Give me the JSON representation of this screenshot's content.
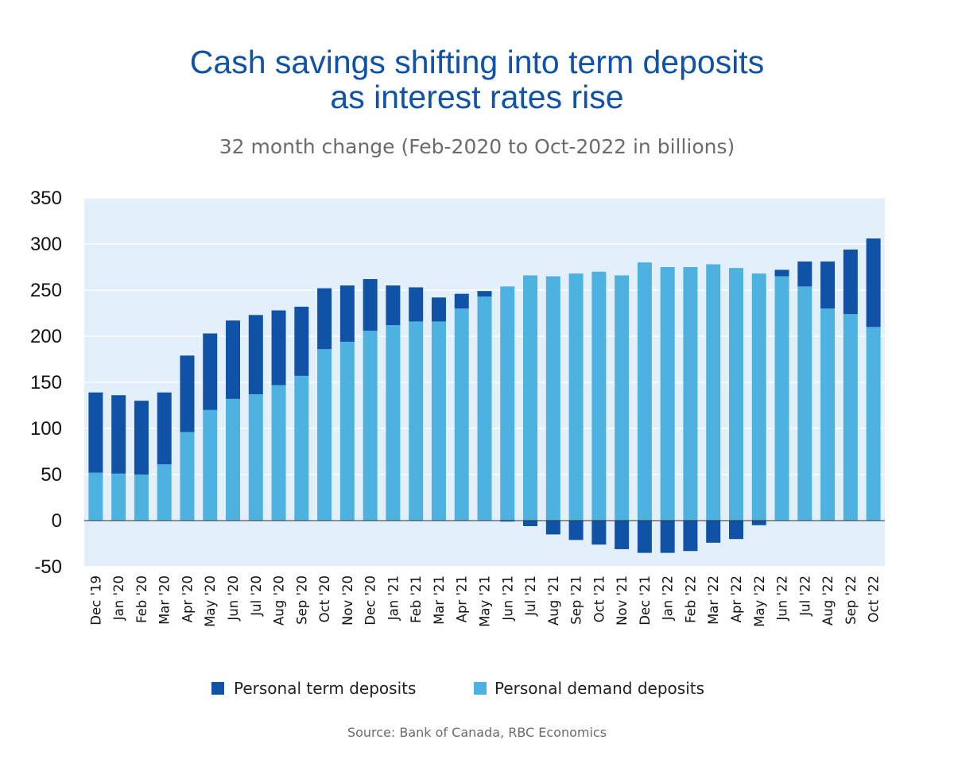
{
  "title_line1": "Cash savings shifting into term deposits",
  "title_line2": "as interest rates rise",
  "subtitle": "32 month change (Feb-2020 to Oct-2022 in billions)",
  "source": "Source: Bank of Canada, RBC Economics",
  "colors": {
    "term": "#0f52a6",
    "demand": "#4db2e0",
    "plot_bg": "#e3f0fb"
  },
  "chart_data": {
    "type": "bar",
    "stacked": true,
    "categories": [
      "Dec '19",
      "Jan '20",
      "Feb '20",
      "Mar '20",
      "Apr '20",
      "May '20",
      "Jun '20",
      "Jul '20",
      "Aug '20",
      "Sep '20",
      "Oct '20",
      "Nov '20",
      "Dec '20",
      "Jan '21",
      "Feb '21",
      "Mar '21",
      "Apr '21",
      "May '21",
      "Jun '21",
      "Jul '21",
      "Aug '21",
      "Sep '21",
      "Oct '21",
      "Nov '21",
      "Dec '21",
      "Jan '22",
      "Feb '22",
      "Mar '22",
      "Apr '22",
      "May '22",
      "Jun '22",
      "Jul '22",
      "Aug '22",
      "Sep '22",
      "Oct '22"
    ],
    "series": [
      {
        "name": "Personal term deposits",
        "color": "#0f52a6",
        "values": [
          87,
          85,
          80,
          78,
          83,
          83,
          85,
          86,
          81,
          75,
          66,
          61,
          56,
          43,
          37,
          26,
          16,
          6,
          -1,
          -6,
          -15,
          -21,
          -26,
          -31,
          -35,
          -35,
          -33,
          -24,
          -20,
          -5,
          7,
          27,
          51,
          70,
          96
        ]
      },
      {
        "name": "Personal demand deposits",
        "color": "#4db2e0",
        "values": [
          52,
          51,
          50,
          61,
          96,
          120,
          132,
          137,
          147,
          157,
          186,
          194,
          206,
          212,
          216,
          216,
          230,
          243,
          254,
          266,
          265,
          268,
          270,
          266,
          280,
          275,
          275,
          278,
          274,
          268,
          265,
          254,
          230,
          224,
          210
        ]
      }
    ],
    "title": "Cash savings shifting into term deposits as interest rates rise",
    "ylabel": "",
    "xlabel": "",
    "ylim": [
      -50,
      350
    ],
    "yticks": [
      "350",
      "300",
      "250",
      "200",
      "150",
      "100",
      "50",
      "0",
      "-50"
    ],
    "legend": "bottom-center",
    "grid": true
  }
}
